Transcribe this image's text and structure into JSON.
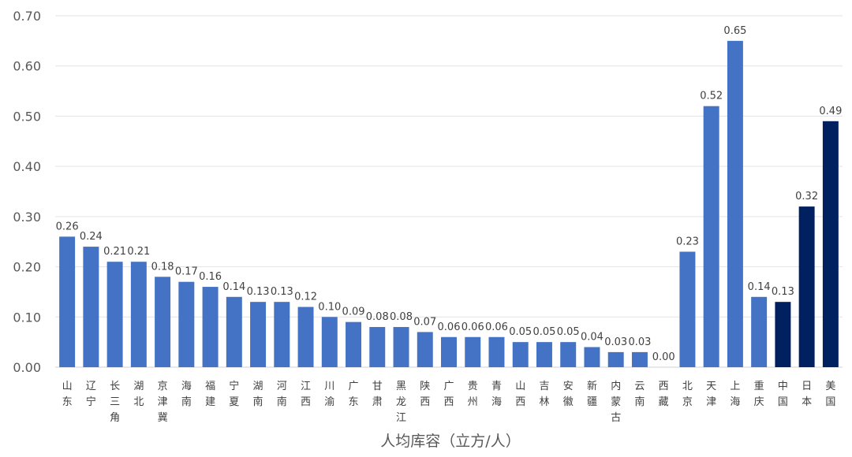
{
  "chart_data": {
    "type": "bar",
    "xlabel": "人均库容（立方/人）",
    "ylim": [
      0,
      0.7
    ],
    "yticks": [
      "0.00",
      "0.10",
      "0.20",
      "0.30",
      "0.40",
      "0.50",
      "0.60",
      "0.70"
    ],
    "grid": true,
    "legend": "none",
    "colors": {
      "province": "#4472C4",
      "country": "#002060"
    },
    "categories": [
      "山东",
      "辽宁",
      "长三角",
      "湖北",
      "京津冀",
      "海南",
      "福建",
      "宁夏",
      "湖南",
      "河南",
      "江西",
      "川渝",
      "广东",
      "甘肃",
      "黑龙江",
      "陕西",
      "广西",
      "贵州",
      "青海",
      "山西",
      "吉林",
      "安徽",
      "新疆",
      "内蒙古",
      "云南",
      "西藏",
      "北京",
      "天津",
      "上海",
      "重庆",
      "中国",
      "日本",
      "美国"
    ],
    "values": [
      0.26,
      0.24,
      0.21,
      0.21,
      0.18,
      0.17,
      0.16,
      0.14,
      0.13,
      0.13,
      0.12,
      0.1,
      0.09,
      0.08,
      0.08,
      0.07,
      0.06,
      0.06,
      0.06,
      0.05,
      0.05,
      0.05,
      0.04,
      0.03,
      0.03,
      0.0,
      0.23,
      0.52,
      0.65,
      0.14,
      0.13,
      0.32,
      0.49
    ],
    "value_labels": [
      "0.26",
      "0.24",
      "0.21",
      "0.21",
      "0.18",
      "0.17",
      "0.16",
      "0.14",
      "0.13",
      "0.13",
      "0.12",
      "0.10",
      "0.09",
      "0.08",
      "0.08",
      "0.07",
      "0.06",
      "0.06",
      "0.06",
      "0.05",
      "0.05",
      "0.05",
      "0.04",
      "0.03",
      "0.03",
      "0.00",
      "0.23",
      "0.52",
      "0.65",
      "0.14",
      "0.13",
      "0.32",
      "0.49"
    ],
    "bar_color_group": [
      "province",
      "province",
      "province",
      "province",
      "province",
      "province",
      "province",
      "province",
      "province",
      "province",
      "province",
      "province",
      "province",
      "province",
      "province",
      "province",
      "province",
      "province",
      "province",
      "province",
      "province",
      "province",
      "province",
      "province",
      "province",
      "province",
      "province",
      "province",
      "province",
      "province",
      "country",
      "country",
      "country"
    ]
  }
}
